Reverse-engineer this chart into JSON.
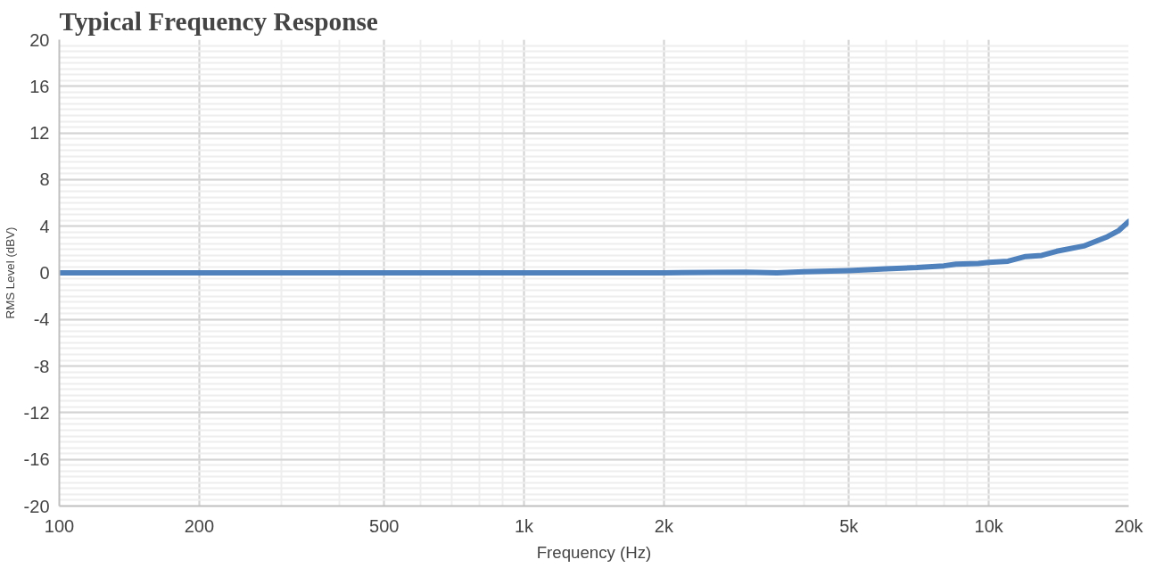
{
  "chart_data": {
    "type": "line",
    "title": "Typical Frequency Response",
    "xlabel": "Frequency (Hz)",
    "ylabel": "RMS Level (dBV)",
    "log": "x",
    "grid": true,
    "marker": "none",
    "line_style": "solid",
    "x": [
      100,
      200,
      500,
      1000,
      2000,
      3000,
      3500,
      4000,
      5000,
      6000,
      7000,
      8000,
      8500,
      9500,
      10000,
      11000,
      12000,
      13000,
      14000,
      16000,
      18000,
      19000,
      20000
    ],
    "series": [
      {
        "color": "#4f81bd",
        "values": [
          0,
          0,
          0,
          0,
          0,
          0.05,
          0,
          0.1,
          0.2,
          0.35,
          0.45,
          0.6,
          0.75,
          0.8,
          0.9,
          1.0,
          1.4,
          1.5,
          1.85,
          2.3,
          3.1,
          3.6,
          4.4
        ]
      }
    ],
    "xlim": [
      100,
      20000
    ],
    "xticks": [
      100,
      200,
      500,
      {
        "value": 1000,
        "label": "1k"
      },
      {
        "value": 2000,
        "label": "2k"
      },
      {
        "value": 5000,
        "label": "5k"
      },
      {
        "value": 10000,
        "label": "10k"
      },
      {
        "value": 20000,
        "label": "20k"
      }
    ],
    "ylim": [
      -20,
      20
    ],
    "yticks": [
      -20,
      -16,
      -12,
      -8,
      -4,
      0,
      4,
      8,
      12,
      16,
      20
    ]
  }
}
